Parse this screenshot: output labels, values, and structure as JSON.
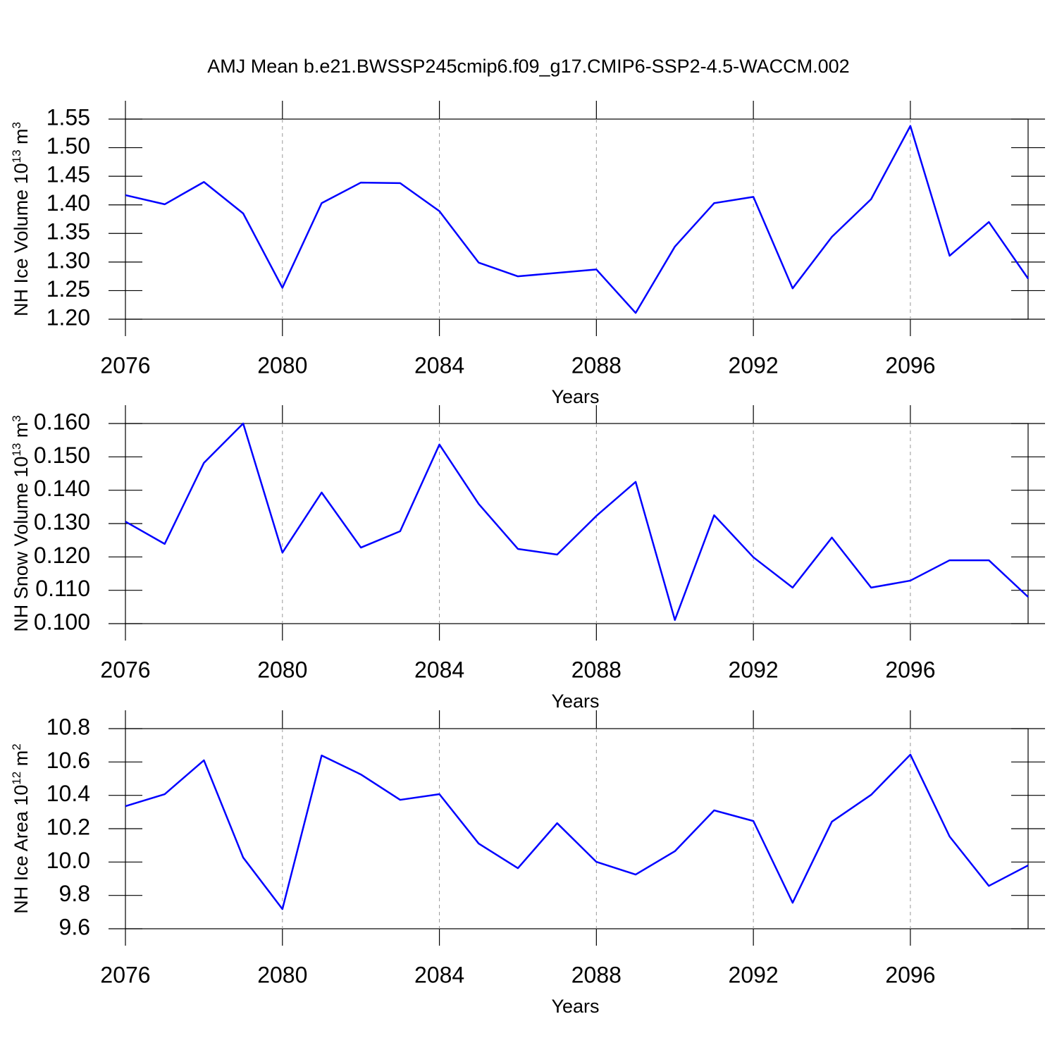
{
  "title": "AMJ Mean b.e21.BWSSP245cmip6.f09_g17.CMIP6-SSP2-4.5-WACCM.002",
  "chart_data": [
    {
      "type": "line",
      "xlabel": "Years",
      "ylabel": [
        "NH Ice Volume 10",
        "13",
        " m",
        "3"
      ],
      "x": [
        2076,
        2077,
        2078,
        2079,
        2080,
        2081,
        2082,
        2083,
        2084,
        2085,
        2086,
        2087,
        2088,
        2089,
        2090,
        2091,
        2092,
        2093,
        2094,
        2095,
        2096,
        2097,
        2098,
        2099
      ],
      "series": [
        {
          "color": "#0000ff",
          "values": [
            1.417,
            1.401,
            1.44,
            1.385,
            1.255,
            1.403,
            1.439,
            1.438,
            1.389,
            1.299,
            1.275,
            1.281,
            1.287,
            1.211,
            1.327,
            1.403,
            1.414,
            1.254,
            1.344,
            1.41,
            1.538,
            1.311,
            1.37,
            1.271
          ]
        }
      ],
      "xlim": [
        2076,
        2099
      ],
      "xticks": [
        2076,
        2080,
        2084,
        2088,
        2092,
        2096
      ],
      "ylim": [
        1.2,
        1.55
      ],
      "yticks": [
        {
          "value": 1.2,
          "label": "1.20"
        },
        1.25,
        {
          "value": 1.3,
          "label": "1.30"
        },
        1.35,
        {
          "value": 1.4,
          "label": "1.40"
        },
        1.45,
        {
          "value": 1.5,
          "label": "1.50"
        },
        1.55
      ],
      "x_grid": true
    },
    {
      "type": "line",
      "xlabel": "Years",
      "ylabel": [
        "NH Snow Volume 10",
        "13",
        " m",
        "3"
      ],
      "x": [
        2076,
        2077,
        2078,
        2079,
        2080,
        2081,
        2082,
        2083,
        2084,
        2085,
        2086,
        2087,
        2088,
        2089,
        2090,
        2091,
        2092,
        2093,
        2094,
        2095,
        2096,
        2097,
        2098,
        2099
      ],
      "series": [
        {
          "color": "#0000ff",
          "values": [
            0.1306,
            0.1239,
            0.1482,
            0.16,
            0.1213,
            0.1393,
            0.1228,
            0.1277,
            0.1537,
            0.1359,
            0.1224,
            0.1207,
            0.1323,
            0.1425,
            0.1011,
            0.1325,
            0.1199,
            0.1108,
            0.1258,
            0.1108,
            0.1129,
            0.119,
            0.119,
            0.108
          ]
        }
      ],
      "xlim": [
        2076,
        2099
      ],
      "xticks": [
        2076,
        2080,
        2084,
        2088,
        2092,
        2096
      ],
      "ylim": [
        0.1,
        0.16
      ],
      "yticks": [
        {
          "value": 0.1,
          "label": "0.100"
        },
        {
          "value": 0.11,
          "label": "0.110"
        },
        {
          "value": 0.12,
          "label": "0.120"
        },
        {
          "value": 0.13,
          "label": "0.130"
        },
        {
          "value": 0.14,
          "label": "0.140"
        },
        {
          "value": 0.15,
          "label": "0.150"
        },
        {
          "value": 0.16,
          "label": "0.160"
        }
      ],
      "x_grid": true
    },
    {
      "type": "line",
      "xlabel": "Years",
      "ylabel": [
        "NH Ice Area 10",
        "12",
        " m",
        "2"
      ],
      "x": [
        2076,
        2077,
        2078,
        2079,
        2080,
        2081,
        2082,
        2083,
        2084,
        2085,
        2086,
        2087,
        2088,
        2089,
        2090,
        2091,
        2092,
        2093,
        2094,
        2095,
        2096,
        2097,
        2098,
        2099
      ],
      "series": [
        {
          "color": "#0000ff",
          "values": [
            10.335,
            10.407,
            10.61,
            10.027,
            9.718,
            10.639,
            10.525,
            10.373,
            10.407,
            10.111,
            9.963,
            10.233,
            10.001,
            9.925,
            10.065,
            10.31,
            10.246,
            9.756,
            10.242,
            10.403,
            10.644,
            10.153,
            9.857,
            9.98
          ]
        }
      ],
      "xlim": [
        2076,
        2099
      ],
      "xticks": [
        2076,
        2080,
        2084,
        2088,
        2092,
        2096
      ],
      "ylim": [
        9.6,
        10.8
      ],
      "yticks": [
        9.6,
        9.8,
        {
          "value": 10,
          "label": "10.0"
        },
        10.2,
        10.4,
        10.6,
        10.8
      ],
      "x_grid": true
    }
  ]
}
